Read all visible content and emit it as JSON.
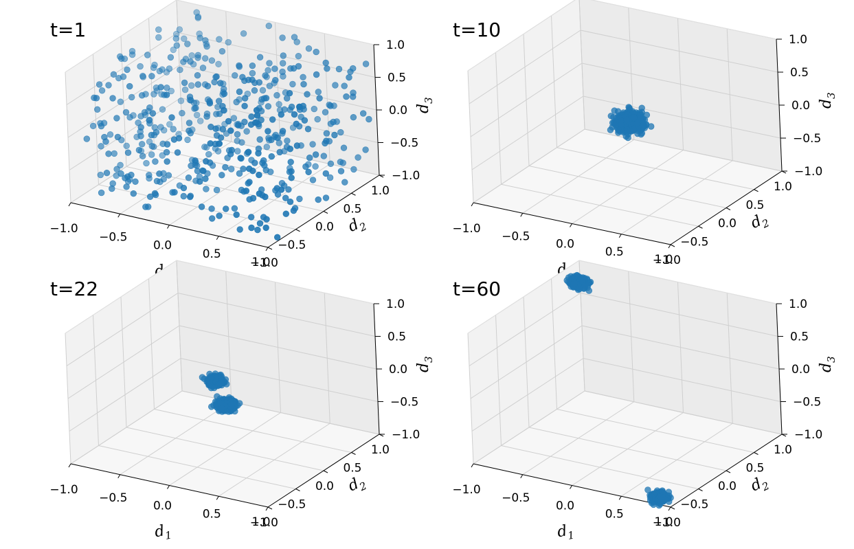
{
  "figure": {
    "layout": "2x2 grid of 3D scatter panels"
  },
  "chart_data": [
    {
      "type": "scatter",
      "projection": "3d",
      "title": "t=1",
      "xlabel": "d",
      "xlabel_sub": "1",
      "ylabel": "d",
      "ylabel_sub": "2",
      "zlabel": "d",
      "zlabel_sub": "3",
      "xlim": [
        -1,
        1
      ],
      "ylim": [
        -1,
        1
      ],
      "zlim": [
        -1,
        1
      ],
      "xticks": [
        "−1.0",
        "−0.5",
        "0.0",
        "0.5",
        "1.0"
      ],
      "yticks": [
        "−1.0",
        "−0.5",
        "0.0",
        "0.5",
        "1.0"
      ],
      "zticks": [
        "−1.0",
        "−0.5",
        "0.0",
        "0.5",
        "1.0"
      ],
      "grid": true,
      "point_color": "#1f77b4",
      "distribution": "uniform",
      "n_points": 500,
      "points": [],
      "clusters": []
    },
    {
      "type": "scatter",
      "projection": "3d",
      "title": "t=10",
      "xlabel": "d",
      "xlabel_sub": "1",
      "ylabel": "d",
      "ylabel_sub": "2",
      "zlabel": "d",
      "zlabel_sub": "3",
      "xlim": [
        -1,
        1
      ],
      "ylim": [
        -1,
        1
      ],
      "zlim": [
        -1,
        1
      ],
      "xticks": [
        "−1.0",
        "−0.5",
        "0.0",
        "0.5",
        "1.0"
      ],
      "yticks": [
        "−1.0",
        "−0.5",
        "0.0",
        "0.5",
        "1.0"
      ],
      "zticks": [
        "−1.0",
        "−0.5",
        "0.0",
        "0.5",
        "1.0"
      ],
      "grid": true,
      "point_color": "#1f77b4",
      "distribution": "clusters",
      "clusters": [
        {
          "center": [
            0.05,
            0.0,
            0.0
          ],
          "spread": 0.06,
          "n": 500
        }
      ]
    },
    {
      "type": "scatter",
      "projection": "3d",
      "title": "t=22",
      "xlabel": "d",
      "xlabel_sub": "1",
      "ylabel": "d",
      "ylabel_sub": "2",
      "zlabel": "d",
      "zlabel_sub": "3",
      "xlim": [
        -1,
        1
      ],
      "ylim": [
        -1,
        1
      ],
      "zlim": [
        -1,
        1
      ],
      "xticks": [
        "−1.0",
        "−0.5",
        "0.0",
        "0.5",
        "1.0"
      ],
      "yticks": [
        "−1.0",
        "−0.5",
        "0.0",
        "0.5",
        "1.0"
      ],
      "zticks": [
        "−1.0",
        "−0.5",
        "0.0",
        "0.5",
        "1.0"
      ],
      "grid": true,
      "point_color": "#1f77b4",
      "distribution": "clusters",
      "clusters": [
        {
          "center": [
            -0.05,
            -0.05,
            0.05
          ],
          "spread": 0.035,
          "n": 200
        },
        {
          "center": [
            0.0,
            0.05,
            -0.35
          ],
          "spread": 0.04,
          "n": 300
        }
      ]
    },
    {
      "type": "scatter",
      "projection": "3d",
      "title": "t=60",
      "xlabel": "d",
      "xlabel_sub": "1",
      "ylabel": "d",
      "ylabel_sub": "2",
      "zlabel": "d",
      "zlabel_sub": "3",
      "xlim": [
        -1,
        1
      ],
      "ylim": [
        -1,
        1
      ],
      "zlim": [
        -1,
        1
      ],
      "xticks": [
        "−1.0",
        "−0.5",
        "0.0",
        "0.5",
        "1.0"
      ],
      "yticks": [
        "−1.0",
        "−0.5",
        "0.0",
        "0.5",
        "1.0"
      ],
      "zticks": [
        "−1.0",
        "−0.5",
        "0.0",
        "0.5",
        "1.0"
      ],
      "grid": true,
      "point_color": "#1f77b4",
      "distribution": "clusters",
      "clusters": [
        {
          "center": [
            -0.75,
            0.55,
            1.0
          ],
          "spread": 0.035,
          "n": 250
        },
        {
          "center": [
            0.8,
            -0.85,
            -1.0
          ],
          "spread": 0.035,
          "n": 250
        }
      ]
    }
  ]
}
